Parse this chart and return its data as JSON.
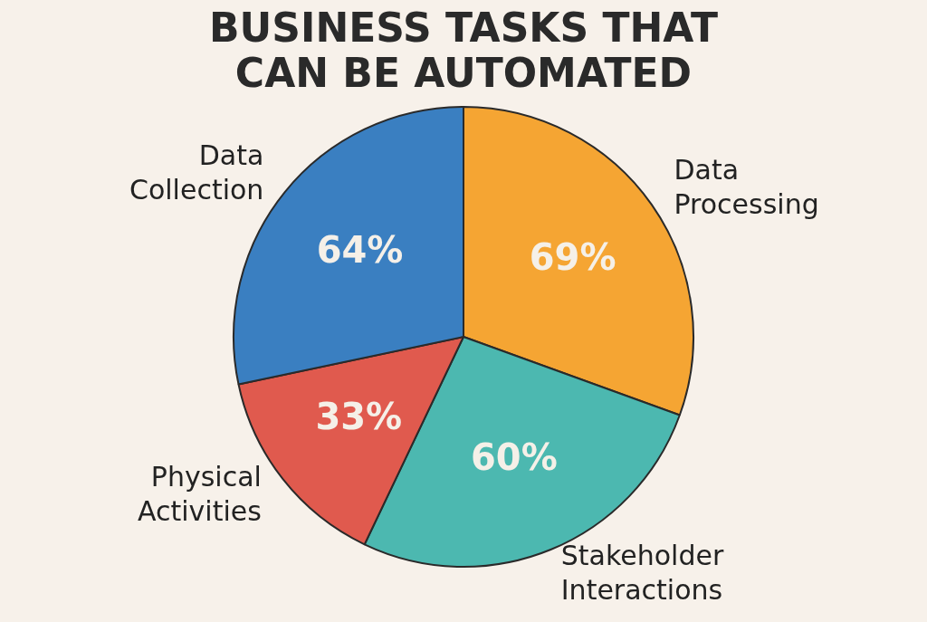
{
  "chart_data": {
    "type": "pie",
    "title": "BUSINESS TASKS THAT CAN BE AUTOMATED",
    "categories": [
      "Data Processing",
      "Stakeholder Interactions",
      "Physical Activities",
      "Data Collection"
    ],
    "values": [
      69,
      60,
      33,
      64
    ],
    "colors": [
      "#f5a533",
      "#4cb8b0",
      "#e05a4e",
      "#3a7fc1"
    ],
    "value_labels": [
      "69%",
      "60%",
      "33%",
      "64%"
    ],
    "legend": false
  }
}
